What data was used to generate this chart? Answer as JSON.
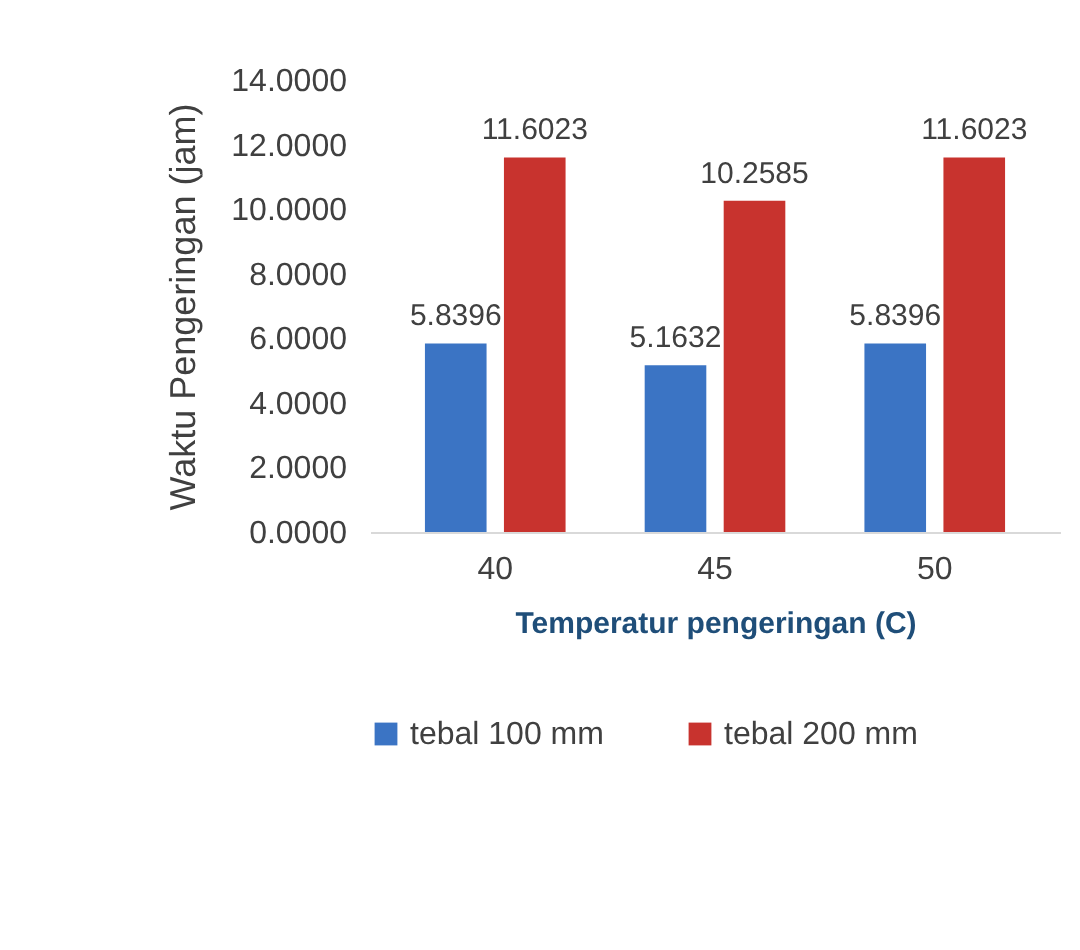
{
  "chart_data": {
    "type": "bar",
    "xlabel": "Temperatur pengeringan (C)",
    "ylabel": "Waktu Pengeringan (jam)",
    "categories": [
      "40",
      "45",
      "50"
    ],
    "series": [
      {
        "name": "tebal 100 mm",
        "color": "#3b74c4",
        "values": [
          5.8396,
          5.1632,
          5.8396
        ],
        "value_labels": [
          "5.8396",
          "5.1632",
          "5.8396"
        ]
      },
      {
        "name": "tebal 200 mm",
        "color": "#c8332e",
        "values": [
          11.6023,
          10.2585,
          11.6023
        ],
        "value_labels": [
          "11.6023",
          "10.2585",
          "11.6023"
        ]
      }
    ],
    "ylim": [
      0,
      14
    ],
    "yticks": [
      {
        "value": 0,
        "label": "0.0000"
      },
      {
        "value": 2,
        "label": "2.0000"
      },
      {
        "value": 4,
        "label": "4.0000"
      },
      {
        "value": 6,
        "label": "6.0000"
      },
      {
        "value": 8,
        "label": "8.0000"
      },
      {
        "value": 10,
        "label": "10.0000"
      },
      {
        "value": 12,
        "label": "12.0000"
      },
      {
        "value": 14,
        "label": "14.0000"
      }
    ],
    "grid": false,
    "legend": "bottom"
  }
}
